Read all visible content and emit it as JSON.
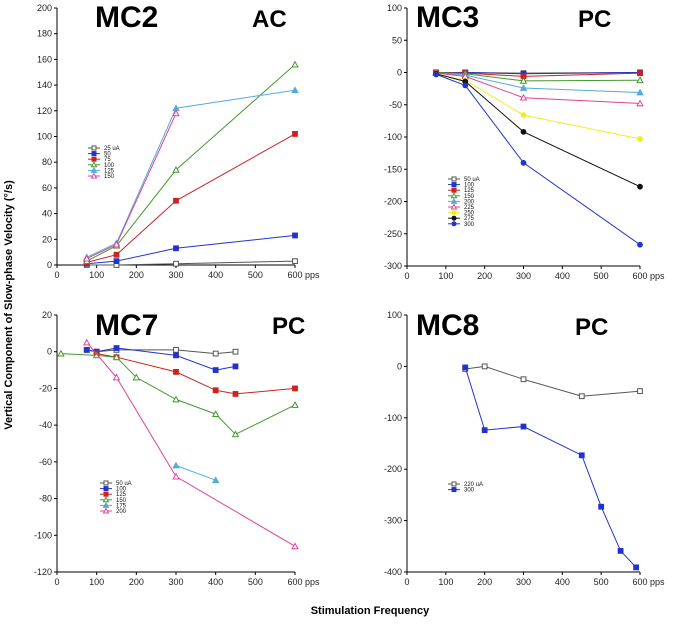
{
  "figure": {
    "ylabel": "Vertical Component of Slow-phase Velocity (°/s)",
    "xlabel": "Stimulation Frequency",
    "unit_suffix": "pps"
  },
  "chart_data": [
    {
      "type": "line",
      "title": "MC2",
      "condition": "AC",
      "xlim": [
        0,
        600
      ],
      "ylim": [
        0,
        200
      ],
      "xticks": [
        0,
        100,
        200,
        300,
        400,
        500,
        600
      ],
      "yticks": [
        0,
        20,
        40,
        60,
        80,
        100,
        120,
        140,
        160,
        180,
        200
      ],
      "legend_position": "left-middle",
      "series": [
        {
          "name": "25 uA",
          "color": "#555555",
          "marker": "square-open",
          "x": [
            75,
            150,
            300,
            600
          ],
          "y": [
            0,
            0,
            1,
            3
          ]
        },
        {
          "name": "50",
          "color": "#2233cc",
          "marker": "square",
          "x": [
            75,
            150,
            300,
            600
          ],
          "y": [
            1,
            3,
            13,
            23
          ]
        },
        {
          "name": "75",
          "color": "#cc2222",
          "marker": "square",
          "x": [
            75,
            150,
            300,
            600
          ],
          "y": [
            2,
            8,
            50,
            102
          ]
        },
        {
          "name": "100",
          "color": "#44992e",
          "marker": "triangle-open",
          "x": [
            75,
            150,
            300,
            600
          ],
          "y": [
            3,
            15,
            74,
            156
          ]
        },
        {
          "name": "125",
          "color": "#55aadd",
          "marker": "triangle",
          "x": [
            75,
            150,
            300,
            600
          ],
          "y": [
            6,
            17,
            122,
            136
          ]
        },
        {
          "name": "150",
          "color": "#dd4499",
          "marker": "triangle-open",
          "x": [
            75,
            150,
            300
          ],
          "y": [
            5,
            16,
            118
          ]
        }
      ]
    },
    {
      "type": "line",
      "title": "MC3",
      "condition": "PC",
      "xlim": [
        0,
        600
      ],
      "ylim": [
        -300,
        100
      ],
      "xticks": [
        0,
        100,
        200,
        300,
        400,
        500,
        600
      ],
      "yticks": [
        -300,
        -250,
        -200,
        -150,
        -100,
        -50,
        0,
        50,
        100
      ],
      "legend_position": "bottom-left",
      "series": [
        {
          "name": "50 uA",
          "color": "#555555",
          "marker": "square-open",
          "x": [
            75,
            150,
            300,
            600
          ],
          "y": [
            0,
            0,
            -1,
            0
          ]
        },
        {
          "name": "100",
          "color": "#2233cc",
          "marker": "square",
          "x": [
            75,
            150,
            300,
            600
          ],
          "y": [
            0,
            0,
            -2,
            0
          ]
        },
        {
          "name": "125",
          "color": "#cc2222",
          "marker": "square",
          "x": [
            75,
            150,
            300,
            600
          ],
          "y": [
            0,
            -1,
            -6,
            -1
          ]
        },
        {
          "name": "150",
          "color": "#44992e",
          "marker": "triangle-open",
          "x": [
            75,
            150,
            300,
            600
          ],
          "y": [
            0,
            -2,
            -13,
            -12
          ]
        },
        {
          "name": "200",
          "color": "#55aadd",
          "marker": "triangle",
          "x": [
            75,
            150,
            300,
            600
          ],
          "y": [
            -1,
            -4,
            -24,
            -31
          ]
        },
        {
          "name": "225",
          "color": "#dd4499",
          "marker": "triangle-open",
          "x": [
            75,
            150,
            300,
            600
          ],
          "y": [
            -1,
            -6,
            -39,
            -48
          ]
        },
        {
          "name": "250",
          "color": "#eeee22",
          "marker": "circle",
          "x": [
            75,
            150,
            300,
            600
          ],
          "y": [
            -2,
            -12,
            -66,
            -103
          ]
        },
        {
          "name": "275",
          "color": "#111111",
          "marker": "circle",
          "x": [
            75,
            150,
            300,
            600
          ],
          "y": [
            -2,
            -14,
            -92,
            -177
          ]
        },
        {
          "name": "300",
          "color": "#2233cc",
          "marker": "circle",
          "x": [
            75,
            150,
            300,
            600
          ],
          "y": [
            -3,
            -20,
            -140,
            -267
          ]
        }
      ]
    },
    {
      "type": "line",
      "title": "MC7",
      "condition": "PC",
      "xlim": [
        0,
        600
      ],
      "ylim": [
        -120,
        20
      ],
      "xticks": [
        0,
        100,
        200,
        300,
        400,
        500,
        600
      ],
      "yticks": [
        -120,
        -100,
        -80,
        -60,
        -40,
        -20,
        0,
        20
      ],
      "legend_position": "bottom-left",
      "series": [
        {
          "name": "50 uA",
          "color": "#555555",
          "marker": "square-open",
          "x": [
            75,
            100,
            150,
            300,
            400,
            450
          ],
          "y": [
            1,
            0,
            1,
            1,
            -1,
            0
          ]
        },
        {
          "name": "100",
          "color": "#2233cc",
          "marker": "square",
          "x": [
            75,
            100,
            150,
            300,
            400,
            450
          ],
          "y": [
            1,
            0,
            2,
            -2,
            -10,
            -8
          ]
        },
        {
          "name": "125",
          "color": "#cc2222",
          "marker": "square",
          "x": [
            100,
            150,
            300,
            400,
            450,
            600
          ],
          "y": [
            -1,
            -3,
            -11,
            -21,
            -23,
            -20
          ]
        },
        {
          "name": "150",
          "color": "#44992e",
          "marker": "triangle-open",
          "x": [
            10,
            100,
            150,
            200,
            300,
            400,
            450,
            600
          ],
          "y": [
            -1,
            -2,
            -3,
            -14,
            -26,
            -34,
            -45,
            -29
          ]
        },
        {
          "name": "175",
          "color": "#55aadd",
          "marker": "triangle",
          "x": [
            300,
            400
          ],
          "y": [
            -62,
            -70
          ]
        },
        {
          "name": "200",
          "color": "#dd4499",
          "marker": "triangle-open",
          "x": [
            75,
            150,
            300,
            600
          ],
          "y": [
            5,
            -14,
            -68,
            -106
          ]
        }
      ]
    },
    {
      "type": "line",
      "title": "MC8",
      "condition": "PC",
      "xlim": [
        0,
        600
      ],
      "ylim": [
        -400,
        100
      ],
      "xticks": [
        0,
        100,
        200,
        300,
        400,
        500,
        600
      ],
      "yticks": [
        -400,
        -300,
        -200,
        -100,
        0,
        100
      ],
      "legend_position": "bottom-left",
      "series": [
        {
          "name": "220 uA",
          "color": "#555555",
          "marker": "square-open",
          "x": [
            150,
            200,
            300,
            450,
            600
          ],
          "y": [
            -5,
            0,
            -25,
            -58,
            -48
          ]
        },
        {
          "name": "300",
          "color": "#2233cc",
          "marker": "square",
          "x": [
            150,
            200,
            300,
            450,
            500,
            550,
            590
          ],
          "y": [
            -2,
            -124,
            -117,
            -173,
            -273,
            -359,
            -391
          ]
        }
      ]
    }
  ]
}
